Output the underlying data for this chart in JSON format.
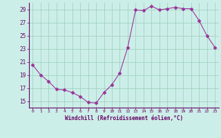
{
  "x": [
    0,
    1,
    2,
    3,
    4,
    5,
    6,
    7,
    8,
    9,
    10,
    11,
    12,
    13,
    14,
    15,
    16,
    17,
    18,
    19,
    20,
    21,
    22,
    23
  ],
  "y": [
    20.5,
    19.0,
    18.0,
    16.8,
    16.7,
    16.3,
    15.7,
    14.8,
    14.7,
    16.3,
    17.5,
    19.3,
    23.2,
    28.9,
    28.8,
    29.5,
    28.9,
    29.1,
    29.3,
    29.1,
    29.1,
    27.3,
    25.0,
    23.2
  ],
  "line_color": "#993399",
  "marker": "D",
  "marker_size": 2.5,
  "background_color": "#cceee8",
  "grid_color": "#99ccbb",
  "xlabel": "Windchill (Refroidissement éolien,°C)",
  "ylabel": "",
  "ylim": [
    14.0,
    30.0
  ],
  "xlim": [
    -0.5,
    23.5
  ],
  "yticks": [
    15,
    17,
    19,
    21,
    23,
    25,
    27,
    29
  ],
  "xticks": [
    0,
    1,
    2,
    3,
    4,
    5,
    6,
    7,
    8,
    9,
    10,
    11,
    12,
    13,
    14,
    15,
    16,
    17,
    18,
    19,
    20,
    21,
    22,
    23
  ],
  "font_color": "#660066"
}
